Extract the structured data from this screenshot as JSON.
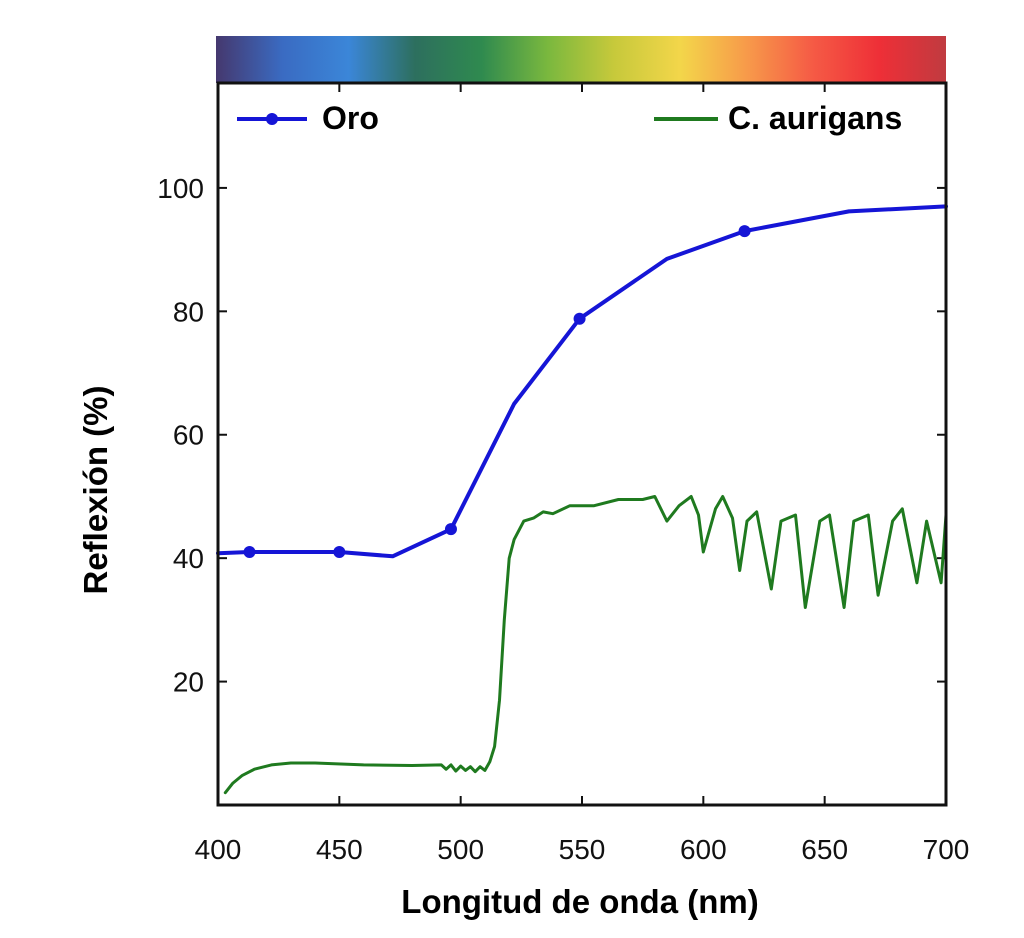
{
  "chart_data": {
    "type": "line",
    "title": "",
    "xlabel": "Longitud de onda (nm)",
    "ylabel": "Reflexión (%)",
    "xlim": [
      400,
      700
    ],
    "ylim": [
      0,
      117
    ],
    "x_ticks": [
      400,
      450,
      500,
      550,
      600,
      650,
      700
    ],
    "y_ticks": [
      20,
      40,
      60,
      80,
      100
    ],
    "grid": false,
    "legend_position": "top",
    "spectrum_bar": true,
    "series": [
      {
        "name": "Oro",
        "color": "#1515d6",
        "marker": "circle",
        "x": [
          400,
          413,
          450,
          472,
          496,
          522,
          549,
          585,
          617,
          660,
          700
        ],
        "y": [
          40.8,
          41,
          41,
          40.3,
          44.7,
          65,
          78.8,
          88.5,
          93,
          96.2,
          97
        ],
        "marker_x": [
          413,
          450,
          496,
          549,
          617
        ],
        "marker_y": [
          41,
          41,
          44.7,
          78.8,
          93
        ]
      },
      {
        "name": "C. aurigans",
        "color": "#1f7a1f",
        "marker": "none",
        "x": [
          403,
          406,
          410,
          415,
          422,
          430,
          440,
          460,
          480,
          492,
          494,
          496,
          498,
          500,
          502,
          504,
          506,
          508,
          510,
          512,
          514,
          516,
          518,
          520,
          522,
          526,
          530,
          534,
          538,
          545,
          555,
          565,
          575,
          580,
          585,
          590,
          595,
          598,
          600,
          605,
          608,
          612,
          615,
          618,
          622,
          628,
          632,
          638,
          642,
          648,
          652,
          658,
          662,
          668,
          672,
          678,
          682,
          688,
          692,
          698,
          700
        ],
        "y": [
          2,
          3.5,
          4.8,
          5.8,
          6.5,
          6.8,
          6.8,
          6.5,
          6.4,
          6.5,
          5.8,
          6.5,
          5.5,
          6.3,
          5.6,
          6.2,
          5.4,
          6.2,
          5.6,
          7,
          9.5,
          17,
          30,
          40,
          43,
          46,
          46.5,
          47.5,
          47.2,
          48.5,
          48.5,
          49.5,
          49.5,
          50,
          46,
          48.5,
          50,
          47,
          41,
          48,
          50,
          46.5,
          38,
          46,
          47.5,
          35,
          46,
          47,
          32,
          46,
          47,
          32,
          46,
          47,
          34,
          46,
          48,
          36,
          46,
          36,
          47
        ]
      }
    ]
  },
  "colors": {
    "spectrum": [
      "#45386e",
      "#3a6bc2",
      "#3b86d8",
      "#2d6f5e",
      "#2f8a4f",
      "#7ab83e",
      "#c7c93b",
      "#f3d64a",
      "#f79a4a",
      "#f55a45",
      "#ee2f37",
      "#c03b40"
    ]
  }
}
